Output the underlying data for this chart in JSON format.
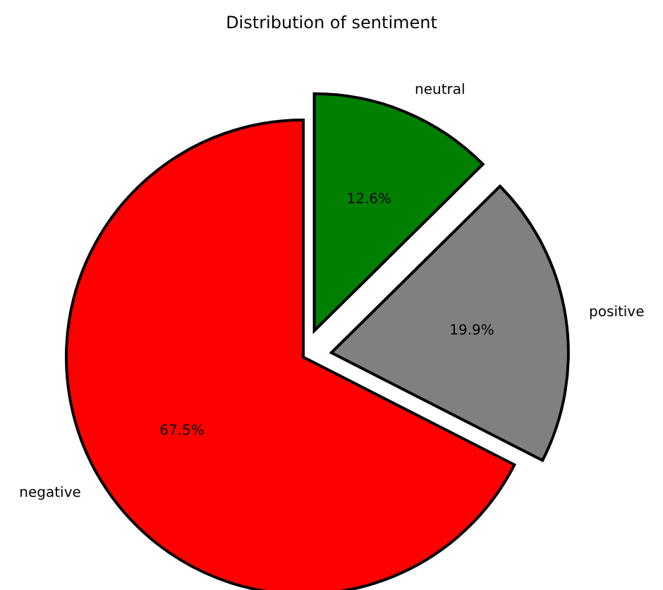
{
  "chart_data": {
    "type": "pie",
    "title": "Distribution of sentiment",
    "categories": [
      "negative",
      "positive",
      "neutral"
    ],
    "values": [
      67.5,
      19.9,
      12.6
    ],
    "colors": [
      "#ff0000",
      "#808080",
      "#008000"
    ],
    "value_labels": [
      "67.5%",
      "19.9%",
      "12.6%"
    ]
  }
}
